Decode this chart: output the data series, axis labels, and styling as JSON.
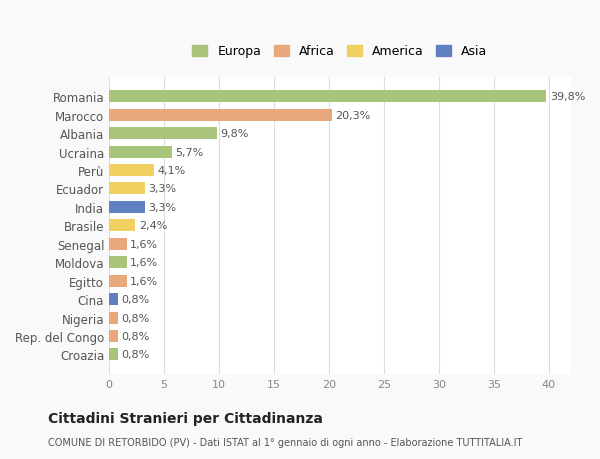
{
  "countries": [
    "Romania",
    "Marocco",
    "Albania",
    "Ucraina",
    "Perù",
    "Ecuador",
    "India",
    "Brasile",
    "Senegal",
    "Moldova",
    "Egitto",
    "Cina",
    "Nigeria",
    "Rep. del Congo",
    "Croazia"
  ],
  "values": [
    39.8,
    20.3,
    9.8,
    5.7,
    4.1,
    3.3,
    3.3,
    2.4,
    1.6,
    1.6,
    1.6,
    0.8,
    0.8,
    0.8,
    0.8
  ],
  "labels": [
    "39,8%",
    "20,3%",
    "9,8%",
    "5,7%",
    "4,1%",
    "3,3%",
    "3,3%",
    "2,4%",
    "1,6%",
    "1,6%",
    "1,6%",
    "0,8%",
    "0,8%",
    "0,8%",
    "0,8%"
  ],
  "continents": [
    "Europa",
    "Africa",
    "Europa",
    "Europa",
    "America",
    "America",
    "Asia",
    "America",
    "Africa",
    "Europa",
    "Africa",
    "Asia",
    "Africa",
    "Africa",
    "Europa"
  ],
  "continent_colors": {
    "Europa": "#a8c47a",
    "Africa": "#e8a87c",
    "America": "#f0d060",
    "Asia": "#6080c0"
  },
  "legend_order": [
    "Europa",
    "Africa",
    "America",
    "Asia"
  ],
  "title": "Cittadini Stranieri per Cittadinanza",
  "subtitle": "COMUNE DI RETORBIDO (PV) - Dati ISTAT al 1° gennaio di ogni anno - Elaborazione TUTTITALIA.IT",
  "xlim": [
    0,
    42
  ],
  "bg_color": "#f9f9f9",
  "plot_bg_color": "#ffffff",
  "grid_color": "#dddddd",
  "bar_height": 0.65
}
